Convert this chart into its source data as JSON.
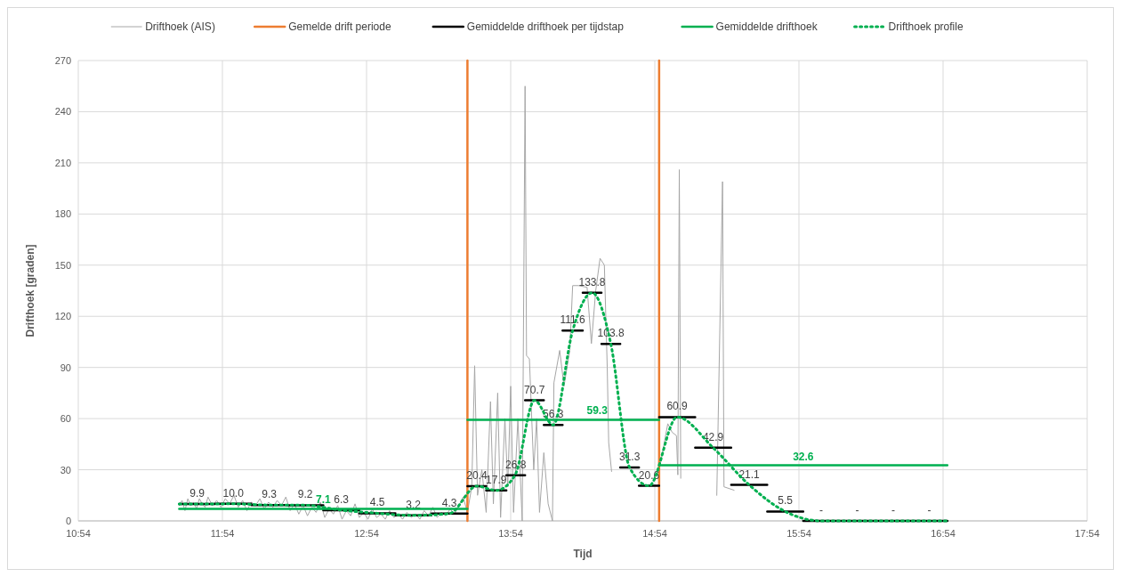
{
  "chart_data": {
    "type": "line",
    "xlabel": "Tijd",
    "ylabel": "Drifthoek [graden]",
    "xlim": [
      10.9,
      17.9
    ],
    "xticks": [
      {
        "value": 10.9,
        "label": "10:54"
      },
      {
        "value": 11.9,
        "label": "11:54"
      },
      {
        "value": 12.9,
        "label": "12:54"
      },
      {
        "value": 13.9,
        "label": "13:54"
      },
      {
        "value": 14.9,
        "label": "14:54"
      },
      {
        "value": 15.9,
        "label": "15:54"
      },
      {
        "value": 16.9,
        "label": "16:54"
      },
      {
        "value": 17.9,
        "label": "17:54"
      }
    ],
    "ylim": [
      0,
      270
    ],
    "yticks": [
      0,
      30,
      60,
      90,
      120,
      150,
      180,
      210,
      240,
      270
    ],
    "grid": true,
    "legend": "top",
    "series": [
      {
        "name": "Drifthoek (AIS)",
        "color": "#a6a6a6",
        "x": [
          11.6,
          11.62,
          11.64,
          11.66,
          11.68,
          11.7,
          11.72,
          11.74,
          11.76,
          11.78,
          11.8,
          11.83,
          11.86,
          11.89,
          11.92,
          11.95,
          11.98,
          12.01,
          12.04,
          12.07,
          12.1,
          12.13,
          12.16,
          12.19,
          12.22,
          12.25,
          12.28,
          12.31,
          12.34,
          12.37,
          12.4,
          12.43,
          12.46,
          12.49,
          12.52,
          12.55,
          12.58,
          12.61,
          12.64,
          12.67,
          12.7,
          12.73,
          12.76,
          12.79,
          12.82,
          12.85,
          12.88,
          12.91,
          12.94,
          12.97,
          13.0,
          13.03,
          13.06,
          13.09,
          13.12,
          13.15,
          13.18,
          13.21,
          13.24,
          13.27,
          13.3,
          13.33,
          13.36,
          13.39,
          13.42,
          13.45,
          13.48,
          13.51,
          13.54,
          13.57,
          13.6,
          13.63,
          13.65,
          13.67,
          13.7,
          13.73,
          13.76,
          13.78,
          13.81,
          13.83,
          13.86,
          13.88,
          13.9,
          13.92,
          13.95,
          13.98,
          14.0,
          14.01,
          14.03,
          14.06,
          14.08,
          14.1,
          14.13,
          14.16,
          14.19,
          14.2,
          14.24,
          14.27,
          14.31,
          14.33,
          14.37,
          14.43,
          14.46,
          14.49,
          14.52,
          14.55,
          14.57,
          14.58,
          14.6,
          14.7,
          14.94,
          14.99,
          15.02,
          15.05,
          15.06,
          15.07,
          15.08,
          15.2,
          15.33,
          15.37,
          15.38,
          15.45
        ],
        "values": [
          9,
          12,
          6,
          13,
          9,
          11,
          7,
          13,
          10,
          8,
          14,
          9,
          12,
          8,
          13,
          10,
          15,
          8,
          12,
          6,
          11,
          9,
          13,
          7,
          11,
          8,
          12,
          9,
          14,
          6,
          10,
          4,
          9,
          3,
          8,
          5,
          11,
          2,
          7,
          4,
          9,
          1,
          6,
          3,
          10,
          2,
          5,
          1,
          7,
          2,
          4,
          1,
          6,
          2,
          4,
          1,
          5,
          2,
          4,
          1,
          6,
          3,
          8,
          2,
          5,
          3,
          7,
          4,
          9,
          14,
          5,
          20,
          91,
          15,
          30,
          5,
          70,
          10,
          75,
          2,
          60,
          20,
          79,
          5,
          60,
          0,
          255,
          97,
          95,
          30,
          60,
          5,
          40,
          10,
          0,
          81,
          100,
          79,
          100,
          138,
          138,
          137,
          104,
          135,
          154,
          150,
          90,
          46,
          29,
          null,
          34,
          57,
          52,
          50,
          27,
          206,
          25,
          null,
          15,
          199,
          20,
          18
        ]
      },
      {
        "name": "Gemelde drift periode",
        "color": "#ed7d31",
        "x": [
          13.6,
          13.6,
          null,
          14.93,
          14.93
        ],
        "values": [
          0,
          270,
          null,
          0,
          270
        ]
      },
      {
        "name": "Gemiddelde drifthoek per tijdstap",
        "color": "#000000",
        "x": [
          11.6,
          11.85,
          null,
          11.85,
          12.1,
          null,
          12.1,
          12.35,
          null,
          12.35,
          12.6,
          null,
          12.6,
          12.85,
          null,
          12.85,
          13.1,
          null,
          13.1,
          13.35,
          null,
          13.35,
          13.6,
          null,
          13.6,
          13.73,
          null,
          13.73,
          13.87,
          null,
          13.87,
          14.0,
          null,
          14.0,
          14.13,
          null,
          14.13,
          14.26,
          null,
          14.26,
          14.4,
          null,
          14.4,
          14.53,
          null,
          14.53,
          14.66,
          null,
          14.66,
          14.79,
          null,
          14.79,
          14.93,
          null,
          14.93,
          15.18,
          null,
          15.18,
          15.43,
          null,
          15.43,
          15.68,
          null,
          15.68,
          15.93,
          null,
          15.93,
          16.18,
          null,
          16.18,
          16.43,
          null,
          16.43,
          16.68,
          null,
          16.68,
          16.93
        ],
        "values": [
          9.9,
          9.9,
          null,
          10.0,
          10.0,
          null,
          9.3,
          9.3,
          null,
          9.2,
          9.2,
          null,
          6.3,
          6.3,
          null,
          4.5,
          4.5,
          null,
          3.2,
          3.2,
          null,
          4.3,
          4.3,
          null,
          20.4,
          20.4,
          null,
          17.9,
          17.9,
          null,
          26.8,
          26.8,
          null,
          70.7,
          70.7,
          null,
          56.3,
          56.3,
          null,
          111.6,
          111.6,
          null,
          133.8,
          133.8,
          null,
          103.8,
          103.8,
          null,
          31.3,
          31.3,
          null,
          20.6,
          20.6,
          null,
          60.9,
          60.9,
          null,
          42.9,
          42.9,
          null,
          21.1,
          21.1,
          null,
          5.5,
          5.5,
          null,
          0,
          0,
          null,
          0,
          0,
          null,
          0,
          0,
          null,
          0,
          0
        ],
        "value_labels": [
          "9.9",
          null,
          null,
          "10.0",
          null,
          null,
          "9.3",
          null,
          null,
          "9.2",
          null,
          null,
          "6.3",
          null,
          null,
          "4.5",
          null,
          null,
          "3.2",
          null,
          null,
          "4.3",
          null,
          null,
          "20.4",
          null,
          null,
          "17.9",
          null,
          null,
          "26.8",
          null,
          null,
          "70.7",
          null,
          null,
          "56.3",
          null,
          null,
          "111.6",
          null,
          null,
          "133.8",
          null,
          null,
          "103.8",
          null,
          null,
          "31.3",
          null,
          null,
          "20.6",
          null,
          null,
          "60.9",
          null,
          null,
          "42.9",
          null,
          null,
          "21.1",
          null,
          null,
          "5.5",
          null,
          null,
          "-",
          null,
          null,
          "-",
          null,
          null,
          "-",
          null,
          null,
          "-",
          null
        ]
      },
      {
        "name": "Gemiddelde drifthoek",
        "color": "#00b050",
        "x": [
          11.6,
          12.6,
          13.6,
          null,
          13.6,
          14.5,
          14.93,
          null,
          14.93,
          15.93,
          16.93
        ],
        "values": [
          7.1,
          7.1,
          7.1,
          null,
          59.3,
          59.3,
          59.3,
          null,
          32.6,
          32.6,
          32.6
        ],
        "value_labels": [
          null,
          "7.1",
          null,
          null,
          null,
          "59.3",
          null,
          null,
          null,
          "32.6",
          null
        ]
      },
      {
        "name": "Drifthoek profile",
        "color": "#00b050",
        "line_style": "dotted",
        "x": [
          11.6,
          11.725,
          11.975,
          12.225,
          12.475,
          12.725,
          12.975,
          13.225,
          13.475,
          13.665,
          13.8,
          13.93,
          14.065,
          14.195,
          14.33,
          14.465,
          14.595,
          14.725,
          14.86,
          15.055,
          15.305,
          15.555,
          15.805,
          16.055,
          16.305,
          16.555,
          16.805,
          16.93
        ],
        "values": [
          9.9,
          9.9,
          10.0,
          9.3,
          9.2,
          6.3,
          4.5,
          3.2,
          4.3,
          20.4,
          17.9,
          26.8,
          70.7,
          56.3,
          111.6,
          133.8,
          103.8,
          31.3,
          20.6,
          60.9,
          42.9,
          21.1,
          5.5,
          0,
          0,
          0,
          0,
          0
        ]
      }
    ]
  }
}
